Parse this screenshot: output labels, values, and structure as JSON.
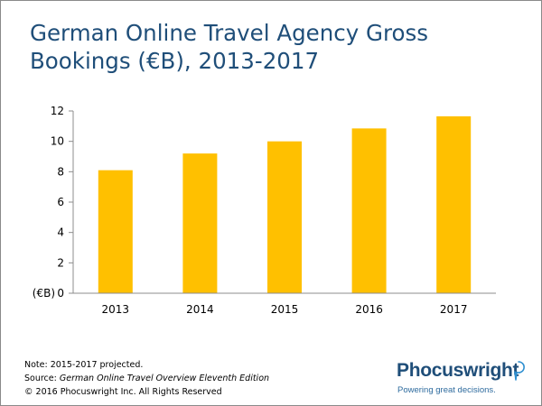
{
  "slide": {
    "title": "German Online Travel Agency Gross Bookings (€B), 2013-2017"
  },
  "chart_data": {
    "type": "bar",
    "title": "German Online Travel Agency Gross Bookings (€B), 2013-2017",
    "categories": [
      "2013",
      "2014",
      "2015",
      "2016",
      "2017"
    ],
    "values": [
      8.1,
      9.2,
      10.0,
      10.85,
      11.65
    ],
    "y_unit_label": "(€B)",
    "y_ticks": [
      "0",
      "2",
      "4",
      "6",
      "8",
      "10",
      "12"
    ],
    "ylim": [
      0,
      12
    ],
    "bar_color": "#ffc000",
    "axis_color": "#8c8c8c",
    "grid": false,
    "legend": "none"
  },
  "footer": {
    "note": "Note: 2015-2017 projected.",
    "source_prefix": "Source: ",
    "source_title": "German Online Travel Overview Eleventh Edition",
    "copyright": "© 2016 Phocuswright Inc. All Rights Reserved"
  },
  "logo": {
    "name": "Phocuswright",
    "tagline": "Powering great decisions.",
    "brand_color": "#1f4e79",
    "mark_icon": "speech-bubble-icon"
  }
}
